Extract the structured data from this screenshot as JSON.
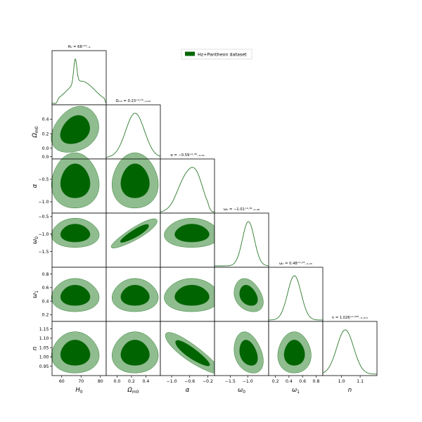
{
  "chart_data": {
    "type": "corner",
    "legend": {
      "label": "Hz+Pantheon dataset",
      "color": "#006400",
      "placement": "top-right"
    },
    "colors": {
      "inner": "#006400",
      "outer": "#90bd90",
      "line": "#2d7a2d"
    },
    "parameters": [
      {
        "id": "H0",
        "label": "H",
        "sub": "0",
        "title": "H₀ = 68⁺¹⁰₋₆",
        "range": [
          55,
          83
        ],
        "ticks": [
          60,
          70,
          80
        ],
        "tick_labels": [
          "60",
          "70",
          "80"
        ],
        "peak": 67,
        "sigma": 5
      },
      {
        "id": "Om",
        "label": "Ω",
        "sub": "m0",
        "title": "Ωₘ₀ = 0.23⁺⁰·²⁰₋₀.₂₂",
        "range": [
          -0.15,
          0.6
        ],
        "ticks": [
          0.0,
          0.2,
          0.4
        ],
        "tick_labels": [
          "0.0",
          "0.2",
          "0.4"
        ],
        "peak": 0.25,
        "sigma": 0.13
      },
      {
        "id": "alpha",
        "label": "α",
        "sub": "",
        "title": "α = −0.59⁺⁰·³⁹₋₀.₄₀",
        "range": [
          -1.25,
          -0.05
        ],
        "ticks": [
          -1.0,
          -0.6,
          -0.2
        ],
        "tick_labels": [
          "−1.0",
          "−0.6",
          "−0.2"
        ],
        "peak": -0.55,
        "sigma": 0.25
      },
      {
        "id": "w0",
        "label": "ω",
        "sub": "0",
        "title": "ω₀ = −1.01⁺⁰·³⁹₋₀.₄₈",
        "range": [
          -1.95,
          -0.4
        ],
        "ticks": [
          -1.5,
          -1.0
        ],
        "tick_labels": [
          "−1.5",
          "−1.0"
        ],
        "peak": -0.98,
        "sigma": 0.17
      },
      {
        "id": "w1",
        "label": "ω",
        "sub": "1",
        "title": "ω₁ = 0.48⁺⁰·²³₋₀.₂₅",
        "range": [
          0.1,
          0.9
        ],
        "ticks": [
          0.2,
          0.4,
          0.6,
          0.8
        ],
        "tick_labels": [
          "0.2",
          "0.4",
          "0.6",
          "0.8"
        ],
        "peak": 0.48,
        "sigma": 0.1
      },
      {
        "id": "n",
        "label": "n",
        "sub": "",
        "title": "n = 1.026⁺⁰·⁰⁸²₋₀.₀₇₁",
        "range": [
          0.9,
          1.19
        ],
        "ticks": [
          1.0,
          1.1
        ],
        "tick_labels": [
          "1.0",
          "1.1"
        ],
        "peak": 1.02,
        "sigma": 0.045
      }
    ],
    "y_ticks": {
      "Om": {
        "ticks": [
          0.0,
          0.2,
          0.4
        ],
        "labels": [
          "0.0",
          "0.2",
          "0.4"
        ]
      },
      "alpha": {
        "ticks": [
          -1.0,
          -0.5,
          0.0
        ],
        "labels": [
          "−1.0",
          "−0.5",
          "0.0"
        ]
      },
      "w0": {
        "ticks": [
          -1.5,
          -1.0,
          -0.5
        ],
        "labels": [
          "−1.5",
          "−1.0",
          "−0.5"
        ]
      },
      "w1": {
        "ticks": [
          0.2,
          0.4,
          0.6,
          0.8
        ],
        "labels": [
          "0.2",
          "0.4",
          "0.6",
          "0.8"
        ]
      },
      "n": {
        "ticks": [
          0.95,
          1.0,
          1.05,
          1.1,
          1.15
        ],
        "labels": [
          "0.95",
          "1.00",
          "1.05",
          "1.10",
          "1.15"
        ]
      }
    },
    "correlations": {
      "Om|w0": -0.88,
      "alpha|n": 0.88,
      "H0|Om": -0.25,
      "w0|w1": 0.3,
      "w0|n": 0.3
    }
  }
}
